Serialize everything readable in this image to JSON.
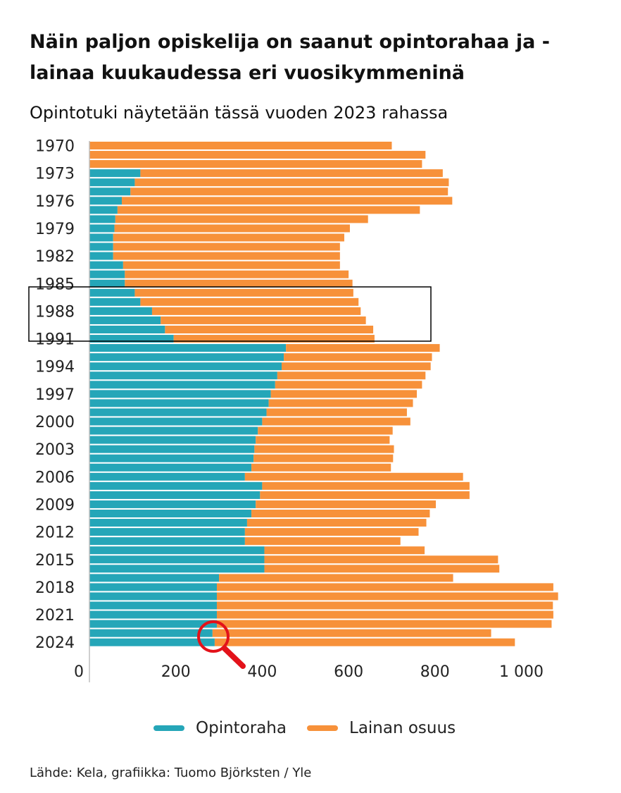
{
  "title": "Näin paljon opiskelija on saanut opintorahaa ja -lainaa kuukaudessa eri vuosikymmeninä",
  "subtitle": "Opintotuki näytetään tässä vuoden 2023 rahassa",
  "source": "Lähde: Kela, grafiikka: Tuomo Björksten / Yle",
  "colors": {
    "opintoraha": "#25a6b8",
    "lainan_osuus": "#f7913a"
  },
  "annotations": {
    "highlight_box": "1985–1989",
    "magnifier": "magnifier-icon"
  },
  "chart_data": {
    "type": "bar",
    "orientation": "horizontal",
    "stacked": true,
    "categories": [
      "1970",
      "1971",
      "1972",
      "1973",
      "1974",
      "1975",
      "1976",
      "1977",
      "1978",
      "1979",
      "1980",
      "1981",
      "1982",
      "1983",
      "1984",
      "1985",
      "1986",
      "1987",
      "1988",
      "1989",
      "1990",
      "1991",
      "1992",
      "1993",
      "1994",
      "1995",
      "1996",
      "1997",
      "1998",
      "1999",
      "2000",
      "2001",
      "2002",
      "2003",
      "2004",
      "2005",
      "2006",
      "2007",
      "2008",
      "2009",
      "2010",
      "2011",
      "2012",
      "2013",
      "2014",
      "2015",
      "2016",
      "2017",
      "2018",
      "2019",
      "2020",
      "2021",
      "2022",
      "2023",
      "2024"
    ],
    "category_ticks": [
      "1970",
      "1973",
      "1976",
      "1979",
      "1982",
      "1985",
      "1988",
      "1991",
      "1994",
      "1997",
      "2000",
      "2003",
      "2006",
      "2009",
      "2012",
      "2015",
      "2018",
      "2021",
      "2024"
    ],
    "series": [
      {
        "name": "Opintoraha",
        "values": [
          0,
          0,
          0,
          118,
          105,
          95,
          75,
          65,
          60,
          58,
          55,
          55,
          55,
          78,
          82,
          82,
          105,
          118,
          145,
          165,
          175,
          195,
          455,
          450,
          445,
          435,
          430,
          420,
          415,
          410,
          400,
          390,
          385,
          382,
          380,
          375,
          360,
          400,
          395,
          385,
          375,
          365,
          360,
          360,
          405,
          405,
          405,
          300,
          295,
          295,
          295,
          295,
          295,
          285,
          290
        ]
      },
      {
        "name": "Lainan osuus",
        "values": [
          700,
          778,
          770,
          700,
          727,
          735,
          765,
          700,
          585,
          545,
          535,
          525,
          525,
          502,
          518,
          527,
          506,
          505,
          483,
          475,
          482,
          465,
          356,
          343,
          345,
          343,
          340,
          338,
          334,
          325,
          343,
          312,
          310,
          323,
          323,
          323,
          505,
          480,
          485,
          417,
          413,
          415,
          402,
          360,
          371,
          541,
          544,
          542,
          779,
          790,
          778,
          779,
          775,
          645,
          695
        ]
      }
    ],
    "xlim": [
      0,
      1140
    ],
    "xticks": [
      0,
      200,
      400,
      600,
      800,
      1000
    ],
    "xtick_labels": [
      "0",
      "200",
      "400",
      "600",
      "800",
      "1 000"
    ],
    "grid": false,
    "legend": "bottom"
  }
}
